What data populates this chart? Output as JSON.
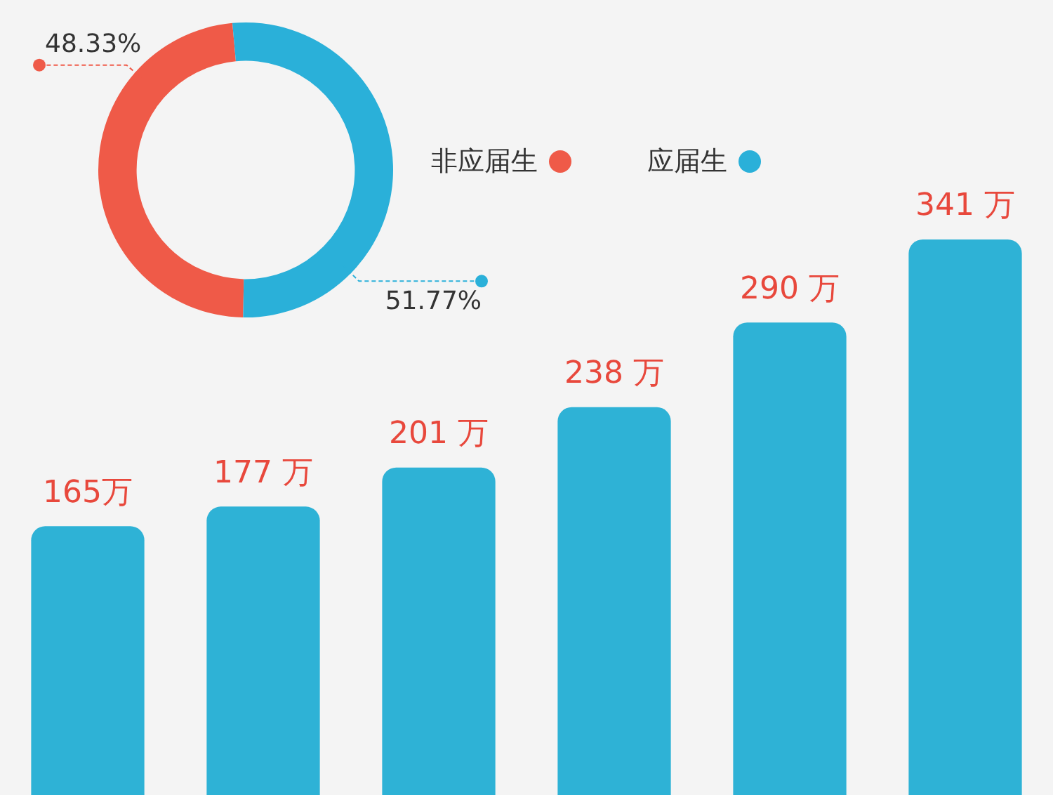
{
  "chart_data": [
    {
      "type": "donut",
      "categories": [
        "非应届生",
        "应届生"
      ],
      "values": [
        48.33,
        51.77
      ],
      "colors": [
        "#ef5a48",
        "#2ab0d9"
      ],
      "value_labels": [
        "48.33%",
        "51.77%"
      ],
      "legend": "right"
    },
    {
      "type": "bar",
      "categories": [
        null,
        null,
        null,
        null,
        null,
        null
      ],
      "values": [
        165,
        177,
        201,
        238,
        290,
        341
      ],
      "color": "#2eb2d6",
      "value_labels": [
        "165万",
        "177 万",
        "201 万",
        "238 万",
        "290 万",
        "341 万"
      ],
      "legend": false
    }
  ]
}
